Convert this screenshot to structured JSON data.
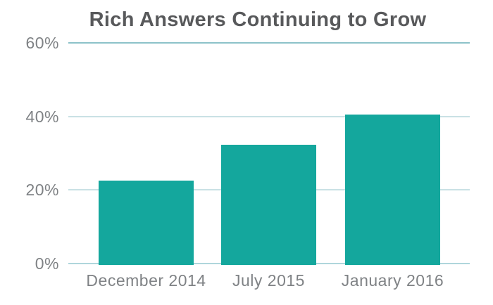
{
  "chart_data": {
    "type": "bar",
    "title": "Rich Answers Continuing to Grow",
    "categories": [
      "December 2014",
      "July 2015",
      "January 2016"
    ],
    "values": [
      22.6,
      32.3,
      40.5
    ],
    "unit": "%",
    "ylim": [
      0,
      60
    ],
    "yticks": [
      {
        "value": 60,
        "label": "60%"
      },
      {
        "value": 40,
        "label": "40%"
      },
      {
        "value": 20,
        "label": "20%"
      },
      {
        "value": 0,
        "label": "0%"
      }
    ],
    "xlabel": "",
    "ylabel": "",
    "grid": "horizontal",
    "legend": "none",
    "colors": {
      "bar": "#14A79D",
      "title_text": "#58595B",
      "axis_text": "#7F8285",
      "gridline_top": "#8CC2C9",
      "gridline": "#C9E1E5",
      "axis_line": "#AFD6DB"
    }
  }
}
